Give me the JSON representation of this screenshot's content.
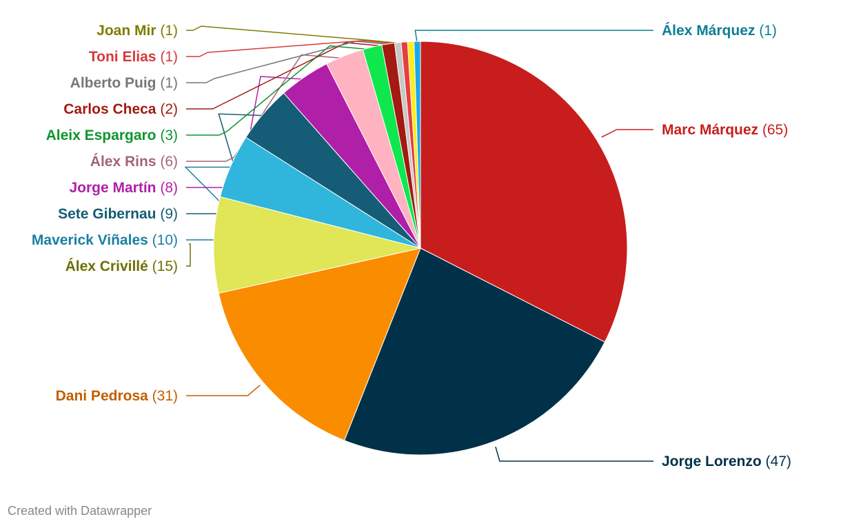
{
  "chart_data": {
    "type": "pie",
    "legend": "none",
    "slices": [
      {
        "label": "Marc Márquez",
        "value": 65,
        "color": "#c71e1d",
        "text_color": "#c71e1d"
      },
      {
        "label": "Jorge Lorenzo",
        "value": 47,
        "color": "#003149",
        "text_color": "#003149"
      },
      {
        "label": "Dani Pedrosa",
        "value": 31,
        "color": "#fa8c00",
        "text_color": "#c25e00"
      },
      {
        "label": "Álex Crivillé",
        "value": 15,
        "color": "#e0e655",
        "text_color": "#6d7000"
      },
      {
        "label": "Maverick Viñales",
        "value": 10,
        "color": "#30b6dc",
        "text_color": "#1a7fa3"
      },
      {
        "label": "Sete Gibernau",
        "value": 9,
        "color": "#155c76",
        "text_color": "#155c76"
      },
      {
        "label": "Jorge Martín",
        "value": 8,
        "color": "#b01fa8",
        "text_color": "#b01fa8"
      },
      {
        "label": "Álex Rins",
        "value": 6,
        "color": "#ffb3c1",
        "text_color": "#a4637a"
      },
      {
        "label": "Aleix Espargaro",
        "value": 3,
        "color": "#0ee84c",
        "text_color": "#11932f"
      },
      {
        "label": "Carlos Checa",
        "value": 2,
        "color": "#a21a12",
        "text_color": "#a21a12"
      },
      {
        "label": "Alberto Puig",
        "value": 1,
        "color": "#c8c8c8",
        "text_color": "#777777"
      },
      {
        "label": "Toni Elias",
        "value": 1,
        "color": "#e63e3e",
        "text_color": "#d63a3a"
      },
      {
        "label": "Joan Mir",
        "value": 1,
        "color": "#ffee1a",
        "text_color": "#7d7c00"
      },
      {
        "label": "Álex Márquez",
        "value": 1,
        "color": "#19a9e8",
        "text_color": "#0c7f95"
      }
    ]
  },
  "footer": {
    "credit": "Created with Datawrapper"
  }
}
